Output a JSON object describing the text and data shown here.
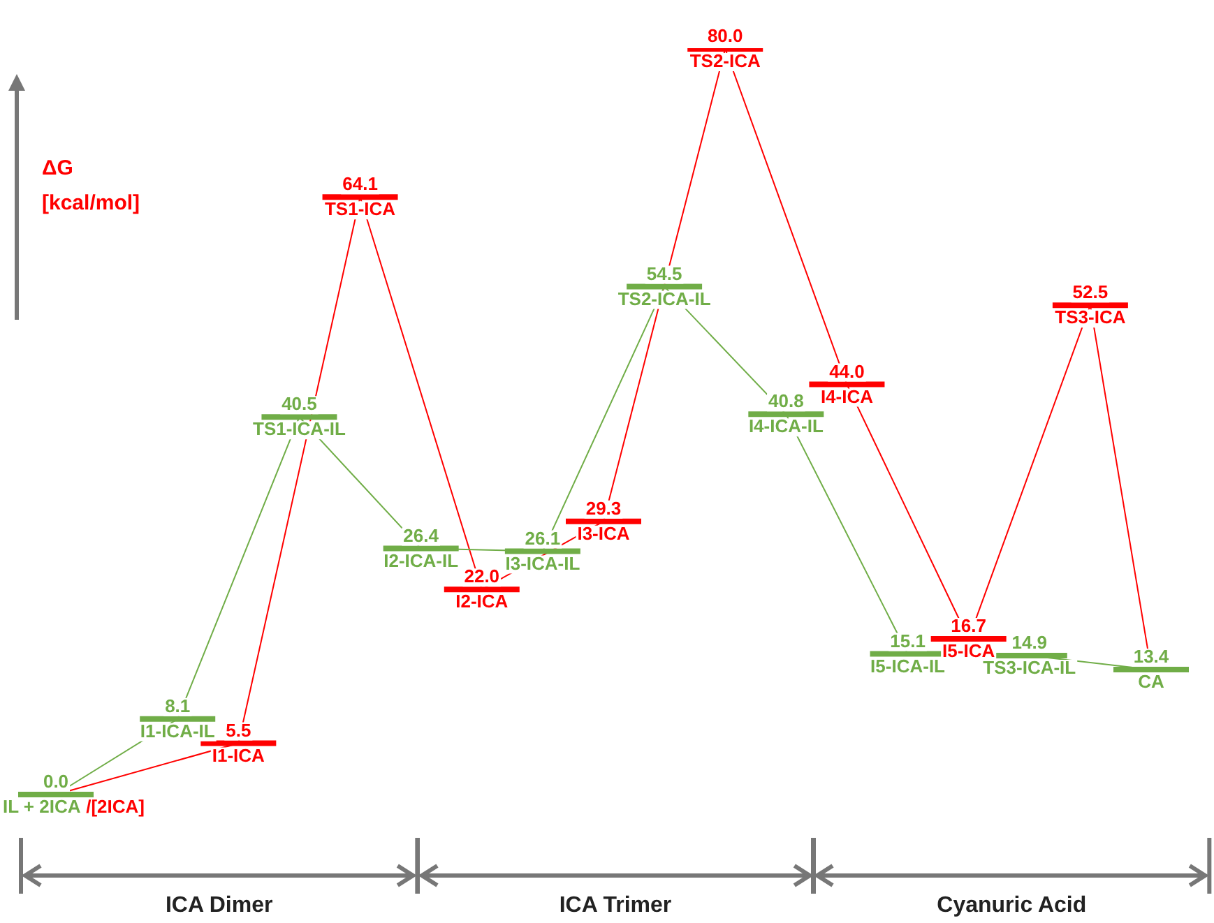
{
  "chart_data": {
    "type": "line",
    "ylabel": "ΔG [kcal/mol]",
    "categories": [
      null,
      null,
      null,
      null,
      null,
      null,
      null,
      null,
      null,
      null,
      null,
      null,
      null,
      null,
      null,
      null,
      null,
      null,
      null
    ],
    "series": [
      {
        "color": "#70ad47",
        "values": [
          0.0,
          null,
          8.1,
          null,
          40.5,
          null,
          26.4,
          null,
          26.1,
          null,
          54.5,
          null,
          40.8,
          null,
          15.1,
          null,
          14.9,
          null,
          13.4
        ],
        "value_labels": [
          "0.0",
          null,
          "8.1",
          null,
          "40.5",
          null,
          "26.4",
          null,
          "26.1",
          null,
          "54.5",
          null,
          "40.8",
          null,
          "15.1",
          null,
          "14.9",
          null,
          "13.4"
        ]
      },
      {
        "color": "#ff0000",
        "values": [
          0.0,
          null,
          null,
          5.5,
          null,
          64.1,
          null,
          22.0,
          null,
          29.3,
          null,
          80.0,
          null,
          44.0,
          null,
          16.7,
          null,
          52.5,
          13.4
        ],
        "value_labels": [
          null,
          null,
          null,
          "5.5",
          null,
          "64.1",
          null,
          "22.0",
          null,
          "29.3",
          null,
          "80.0",
          null,
          "44.0",
          null,
          "16.7",
          null,
          "52.5",
          null
        ]
      }
    ],
    "annotations": [
      {
        "text": "IL + 2ICA /[2ICA]",
        "y": 0.0
      },
      {
        "text": "I1-ICA-IL",
        "y": 8.1
      },
      {
        "text": "TS1-ICA-IL",
        "y": 40.5
      },
      {
        "text": "I2-ICA-IL",
        "y": 26.4
      },
      {
        "text": "I3-ICA-IL",
        "y": 26.1
      },
      {
        "text": "TS2-ICA-IL",
        "y": 54.5
      },
      {
        "text": "I4-ICA-IL",
        "y": 40.8
      },
      {
        "text": "I5-ICA-IL",
        "y": 15.1
      },
      {
        "text": "TS3-ICA-IL",
        "y": 14.9
      },
      {
        "text": "CA",
        "y": 13.4
      },
      {
        "text": "I1-ICA",
        "y": 5.5
      },
      {
        "text": "TS1-ICA",
        "y": 64.1
      },
      {
        "text": "I2-ICA",
        "y": 22.0
      },
      {
        "text": "I3-ICA",
        "y": 29.3
      },
      {
        "text": "TS2-ICA",
        "y": 80.0
      },
      {
        "text": "I4-ICA",
        "y": 44.0
      },
      {
        "text": "I5-ICA",
        "y": 16.7
      },
      {
        "text": "TS3-ICA",
        "y": 52.5
      },
      "ICA Dimer",
      "ICA Trimer",
      "Cyanuric Acid"
    ],
    "grid": false,
    "legend": false,
    "tick_labels": false
  }
}
